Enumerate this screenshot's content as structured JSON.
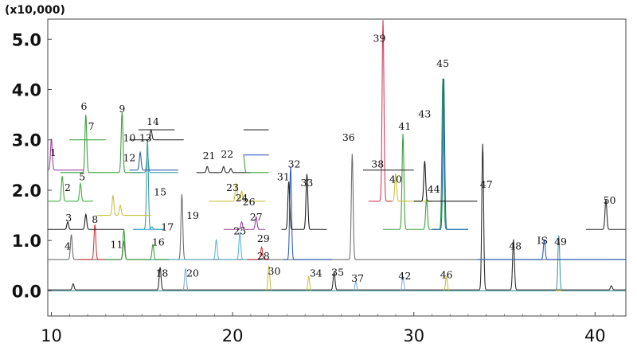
{
  "chart_data": {
    "type": "line",
    "title": "",
    "xlabel": "",
    "ylabel": "",
    "y_multiplier_label": "(x10,000)",
    "xlim": [
      9.8,
      41.7
    ],
    "ylim": [
      -0.5,
      5.4
    ],
    "x_ticks": [
      10,
      20,
      30,
      40
    ],
    "x_tick_labels": [
      "10",
      "20",
      "30",
      "40"
    ],
    "y_ticks": [
      0.0,
      1.0,
      2.0,
      3.0,
      4.0,
      5.0
    ],
    "y_tick_labels": [
      "0.0",
      "1.0",
      "2.0",
      "3.0",
      "4.0",
      "5.0"
    ],
    "grid": false,
    "traces": [
      {
        "color": "#303030",
        "x_start": 9.8,
        "x_end": 41.7,
        "baseline": 0.02,
        "peaks": [
          {
            "x": 11.2,
            "h": 0.12
          },
          {
            "x": 16.0,
            "h": 0.45
          },
          {
            "x": 25.6,
            "h": 0.35
          },
          {
            "x": 33.8,
            "h": 2.9
          },
          {
            "x": 35.5,
            "h": 1.0
          },
          {
            "x": 40.9,
            "h": 0.08
          }
        ]
      },
      {
        "color": "#7fb0d8",
        "x_start": 9.8,
        "x_end": 41.7,
        "baseline": 0.0,
        "peaks": [
          {
            "x": 17.4,
            "h": 0.45
          },
          {
            "x": 26.8,
            "h": 0.18
          },
          {
            "x": 29.4,
            "h": 0.28
          }
        ]
      },
      {
        "color": "#c8c440",
        "x_start": 9.8,
        "x_end": 41.7,
        "baseline": 0.0,
        "peaks": [
          {
            "x": 22.0,
            "h": 0.5
          },
          {
            "x": 24.2,
            "h": 0.28
          },
          {
            "x": 31.8,
            "h": 0.28
          }
        ]
      },
      {
        "color": "#4a9aa0",
        "x_start": 9.8,
        "x_end": 41.7,
        "baseline": 0.0,
        "peaks": [
          {
            "x": 38.0,
            "h": 1.1
          }
        ]
      },
      {
        "color": "#707070",
        "x_start": 9.8,
        "x_end": 41.7,
        "baseline": 0.62,
        "peaks": [
          {
            "x": 11.1,
            "h": 0.5
          },
          {
            "x": 14.0,
            "h": 0.35
          },
          {
            "x": 17.2,
            "h": 1.3
          },
          {
            "x": 26.6,
            "h": 2.1
          }
        ]
      },
      {
        "color": "#60b8d8",
        "x_start": 15.0,
        "x_end": 22.0,
        "baseline": 0.62,
        "peaks": [
          {
            "x": 19.1,
            "h": 0.4
          },
          {
            "x": 20.4,
            "h": 0.55
          }
        ]
      },
      {
        "color": "#3060c0",
        "x_start": 22.8,
        "x_end": 25.5,
        "baseline": 0.62,
        "peaks": [
          {
            "x": 23.2,
            "h": 1.85
          }
        ]
      },
      {
        "color": "#3060c0",
        "x_start": 33.5,
        "x_end": 41.7,
        "baseline": 0.62,
        "peaks": [
          {
            "x": 37.2,
            "h": 0.4
          }
        ]
      },
      {
        "color": "#d04040",
        "x_start": 11.5,
        "x_end": 13.0,
        "baseline": 0.62,
        "peaks": [
          {
            "x": 12.4,
            "h": 0.7
          }
        ]
      },
      {
        "color": "#40a040",
        "x_start": 13.0,
        "x_end": 16.5,
        "baseline": 0.62,
        "peaks": [
          {
            "x": 14.0,
            "h": 0.6
          },
          {
            "x": 15.6,
            "h": 0.3
          }
        ]
      },
      {
        "color": "#d04040",
        "x_start": 20.8,
        "x_end": 22.0,
        "baseline": 0.62,
        "peaks": [
          {
            "x": 21.6,
            "h": 0.25
          }
        ]
      },
      {
        "color": "#202020",
        "x_start": 9.8,
        "x_end": 14.0,
        "baseline": 1.22,
        "peaks": [
          {
            "x": 10.9,
            "h": 0.15
          },
          {
            "x": 11.9,
            "h": 0.3
          }
        ]
      },
      {
        "color": "#40a0a0",
        "x_start": 14.5,
        "x_end": 16.2,
        "baseline": 1.22,
        "peaks": [
          {
            "x": 15.3,
            "h": 1.8
          }
        ]
      },
      {
        "color": "#20a0d0",
        "x_start": 14.5,
        "x_end": 16.2,
        "baseline": 1.22,
        "peaks": [
          {
            "x": 15.55,
            "h": 0.05
          }
        ]
      },
      {
        "color": "#a040a0",
        "x_start": 19.5,
        "x_end": 21.8,
        "baseline": 1.22,
        "peaks": [
          {
            "x": 20.5,
            "h": 0.15
          },
          {
            "x": 21.3,
            "h": 0.25
          }
        ]
      },
      {
        "color": "#202020",
        "x_start": 22.7,
        "x_end": 25.2,
        "baseline": 1.22,
        "peaks": [
          {
            "x": 23.1,
            "h": 0.95
          },
          {
            "x": 24.1,
            "h": 1.1
          }
        ]
      },
      {
        "color": "#40a040",
        "x_start": 28.3,
        "x_end": 31.5,
        "baseline": 1.22,
        "peaks": [
          {
            "x": 29.4,
            "h": 1.9
          },
          {
            "x": 30.7,
            "h": 0.6
          }
        ]
      },
      {
        "color": "#20a040",
        "x_start": 31.0,
        "x_end": 33.0,
        "baseline": 1.22,
        "peaks": [
          {
            "x": 31.6,
            "h": 3.0
          }
        ]
      },
      {
        "color": "#2060c0",
        "x_start": 31.0,
        "x_end": 33.0,
        "baseline": 1.22,
        "peaks": [
          {
            "x": 31.65,
            "h": 3.05
          }
        ]
      },
      {
        "color": "#303030",
        "x_start": 39.5,
        "x_end": 41.7,
        "baseline": 1.22,
        "peaks": [
          {
            "x": 40.6,
            "h": 0.6
          }
        ]
      },
      {
        "color": "#c8c440",
        "x_start": 12.5,
        "x_end": 15.5,
        "baseline": 1.5,
        "peaks": [
          {
            "x": 13.4,
            "h": 0.4
          },
          {
            "x": 13.8,
            "h": 0.2
          }
        ]
      },
      {
        "color": "#40b040",
        "x_start": 9.8,
        "x_end": 12.3,
        "baseline": 1.78,
        "peaks": [
          {
            "x": 10.6,
            "h": 0.5
          },
          {
            "x": 11.6,
            "h": 0.35
          }
        ]
      },
      {
        "color": "#c8c440",
        "x_start": 18.7,
        "x_end": 21.8,
        "baseline": 1.78,
        "peaks": [
          {
            "x": 20.2,
            "h": 0.35
          },
          {
            "x": 20.5,
            "h": 0.2
          }
        ]
      },
      {
        "color": "#c8c440",
        "x_start": 28.5,
        "x_end": 31.0,
        "baseline": 1.78,
        "peaks": [
          {
            "x": 29.0,
            "h": 0.55
          }
        ]
      },
      {
        "color": "#202020",
        "x_start": 30.0,
        "x_end": 33.5,
        "baseline": 1.78,
        "peaks": [
          {
            "x": 30.6,
            "h": 0.8
          }
        ]
      },
      {
        "color": "#d04060",
        "x_start": 27.5,
        "x_end": 28.8,
        "baseline": 1.78,
        "peaks": [
          {
            "x": 28.3,
            "h": 3.6
          }
        ]
      },
      {
        "color": "#40a040",
        "x_start": 10.5,
        "x_end": 13.0,
        "baseline": 2.35,
        "peaks": [
          {
            "x": 11.9,
            "h": 1.15
          }
        ]
      },
      {
        "color": "#40a040",
        "x_start": 13.0,
        "x_end": 15.0,
        "baseline": 2.35,
        "peaks": [
          {
            "x": 13.9,
            "h": 1.2
          }
        ]
      },
      {
        "color": "#40a0a0",
        "x_start": 14.5,
        "x_end": 17.0,
        "baseline": 2.35,
        "peaks": [
          {
            "x": 15.3,
            "h": 0.4
          }
        ]
      },
      {
        "color": "#303030",
        "x_start": 18.0,
        "x_end": 21.0,
        "baseline": 2.35,
        "peaks": [
          {
            "x": 18.6,
            "h": 0.12
          },
          {
            "x": 19.5,
            "h": 0.12
          },
          {
            "x": 19.9,
            "h": 0.08
          }
        ]
      },
      {
        "color": "#40a040",
        "x_start": 20.6,
        "x_end": 22.0,
        "baseline": 2.35,
        "peaks": [
          {
            "x": 20.6,
            "h": 0.35
          }
        ]
      },
      {
        "color": "#a040a0",
        "x_start": 9.8,
        "x_end": 11.8,
        "baseline": 2.4,
        "peaks": [
          {
            "x": 10.0,
            "h": 0.62
          }
        ]
      },
      {
        "color": "#3060b0",
        "x_start": 14.3,
        "x_end": 17.0,
        "baseline": 2.4,
        "peaks": [
          {
            "x": 14.9,
            "h": 0.35
          }
        ]
      },
      {
        "color": "#303030",
        "x_start": 27.2,
        "x_end": 30.0,
        "baseline": 2.4,
        "peaks": []
      },
      {
        "color": "#40a040",
        "x_start": 11.0,
        "x_end": 13.0,
        "baseline": 3.0,
        "peaks": []
      },
      {
        "color": "#303030",
        "x_start": 14.3,
        "x_end": 17.3,
        "baseline": 3.0,
        "peaks": [
          {
            "x": 15.5,
            "h": 0.2
          }
        ]
      },
      {
        "color": "#303030",
        "x_start": 14.8,
        "x_end": 16.8,
        "baseline": 3.2,
        "peaks": []
      },
      {
        "color": "#303030",
        "x_start": 20.6,
        "x_end": 22.0,
        "baseline": 3.2,
        "peaks": []
      },
      {
        "color": "#3060c0",
        "x_start": 20.6,
        "x_end": 22.0,
        "baseline": 2.7,
        "peaks": []
      }
    ],
    "annotations": [
      {
        "text": "1",
        "x": 10.1,
        "y": 2.68
      },
      {
        "text": "2",
        "x": 10.9,
        "y": 1.98
      },
      {
        "text": "3",
        "x": 10.95,
        "y": 1.38
      },
      {
        "text": "4",
        "x": 10.9,
        "y": 0.82
      },
      {
        "text": "5",
        "x": 11.7,
        "y": 2.2
      },
      {
        "text": "6",
        "x": 11.8,
        "y": 3.6
      },
      {
        "text": "7",
        "x": 12.2,
        "y": 3.2
      },
      {
        "text": "8",
        "x": 12.4,
        "y": 1.35
      },
      {
        "text": "9",
        "x": 13.9,
        "y": 3.55
      },
      {
        "text": "10",
        "x": 14.3,
        "y": 2.97
      },
      {
        "text": "11",
        "x": 13.6,
        "y": 0.85
      },
      {
        "text": "12",
        "x": 14.3,
        "y": 2.58
      },
      {
        "text": "13",
        "x": 15.2,
        "y": 2.97
      },
      {
        "text": "14",
        "x": 15.6,
        "y": 3.3
      },
      {
        "text": "15",
        "x": 16.0,
        "y": 1.9
      },
      {
        "text": "16",
        "x": 15.9,
        "y": 0.9
      },
      {
        "text": "17",
        "x": 16.4,
        "y": 1.2
      },
      {
        "text": "18",
        "x": 16.1,
        "y": 0.28
      },
      {
        "text": "19",
        "x": 17.8,
        "y": 1.43
      },
      {
        "text": "20",
        "x": 17.8,
        "y": 0.28
      },
      {
        "text": "21",
        "x": 18.7,
        "y": 2.62
      },
      {
        "text": "22",
        "x": 19.7,
        "y": 2.65
      },
      {
        "text": "23",
        "x": 20.0,
        "y": 1.98
      },
      {
        "text": "24",
        "x": 20.5,
        "y": 1.78
      },
      {
        "text": "25",
        "x": 20.4,
        "y": 1.12
      },
      {
        "text": "26",
        "x": 20.9,
        "y": 1.7
      },
      {
        "text": "27",
        "x": 21.3,
        "y": 1.4
      },
      {
        "text": "28",
        "x": 21.7,
        "y": 0.62
      },
      {
        "text": "29",
        "x": 21.7,
        "y": 0.97
      },
      {
        "text": "30",
        "x": 22.3,
        "y": 0.32
      },
      {
        "text": "31",
        "x": 22.8,
        "y": 2.2
      },
      {
        "text": "32",
        "x": 23.4,
        "y": 2.45
      },
      {
        "text": "33",
        "x": 24.1,
        "y": 2.08
      },
      {
        "text": "34",
        "x": 24.6,
        "y": 0.28
      },
      {
        "text": "35",
        "x": 25.8,
        "y": 0.3
      },
      {
        "text": "36",
        "x": 26.4,
        "y": 2.98
      },
      {
        "text": "37",
        "x": 26.9,
        "y": 0.18
      },
      {
        "text": "38",
        "x": 28.0,
        "y": 2.45
      },
      {
        "text": "39",
        "x": 28.1,
        "y": 4.95
      },
      {
        "text": "40",
        "x": 29.0,
        "y": 2.15
      },
      {
        "text": "41",
        "x": 29.5,
        "y": 3.2
      },
      {
        "text": "42",
        "x": 29.5,
        "y": 0.23
      },
      {
        "text": "43",
        "x": 30.6,
        "y": 3.45
      },
      {
        "text": "44",
        "x": 31.1,
        "y": 1.95
      },
      {
        "text": "45",
        "x": 31.6,
        "y": 4.45
      },
      {
        "text": "46",
        "x": 31.8,
        "y": 0.25
      },
      {
        "text": "47",
        "x": 34.0,
        "y": 2.05
      },
      {
        "text": "48",
        "x": 35.6,
        "y": 0.82
      },
      {
        "text": "IS",
        "x": 37.1,
        "y": 0.93
      },
      {
        "text": "49",
        "x": 38.1,
        "y": 0.91
      },
      {
        "text": "50",
        "x": 40.8,
        "y": 1.73
      }
    ]
  }
}
